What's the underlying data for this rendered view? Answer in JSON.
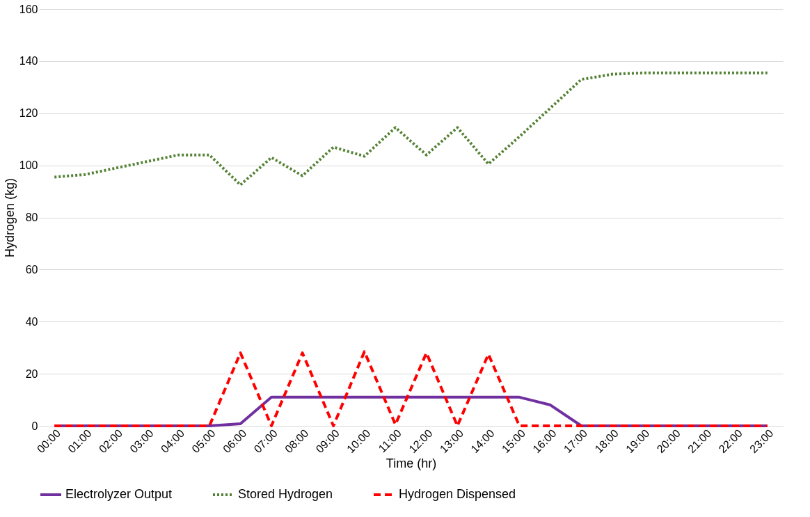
{
  "chart_data": {
    "type": "line",
    "xlabel": "Time (hr)",
    "ylabel": "Hydrogen (kg)",
    "categories": [
      "00:00",
      "01:00",
      "02:00",
      "03:00",
      "04:00",
      "05:00",
      "06:00",
      "07:00",
      "08:00",
      "09:00",
      "10:00",
      "11:00",
      "12:00",
      "13:00",
      "14:00",
      "15:00",
      "16:00",
      "17:00",
      "18:00",
      "19:00",
      "20:00",
      "21:00",
      "22:00",
      "23:00"
    ],
    "series": [
      {
        "name": "Electrolyzer Output",
        "color": "#7030a0",
        "line_style": "solid",
        "values": [
          0,
          0,
          0,
          0,
          0,
          0,
          0.8,
          11,
          11,
          11,
          11,
          11,
          11,
          11,
          11,
          11,
          8,
          0,
          0,
          0,
          0,
          0,
          0,
          0
        ]
      },
      {
        "name": "Stored Hydrogen",
        "color": "#548235",
        "line_style": "dotted",
        "values": [
          95.5,
          96.5,
          99,
          101.5,
          104,
          104,
          92.5,
          103,
          96,
          107,
          103.5,
          114.5,
          104,
          114.5,
          100.5,
          111,
          122,
          133,
          135,
          135.5,
          135.5,
          135.5,
          135.5,
          135.5
        ]
      },
      {
        "name": "Hydrogen Dispensed",
        "color": "#ff0000",
        "line_style": "dashed",
        "values": [
          0,
          0,
          0,
          0,
          0,
          0,
          28,
          0,
          28,
          0,
          28.5,
          0.5,
          28,
          0,
          27.5,
          0,
          0,
          0,
          0,
          0,
          0,
          0,
          0,
          0
        ]
      }
    ],
    "ylim": [
      0,
      160
    ],
    "yticks": [
      0,
      20,
      40,
      60,
      80,
      100,
      120,
      140,
      160
    ],
    "grid": "y",
    "legend": "bottom"
  }
}
